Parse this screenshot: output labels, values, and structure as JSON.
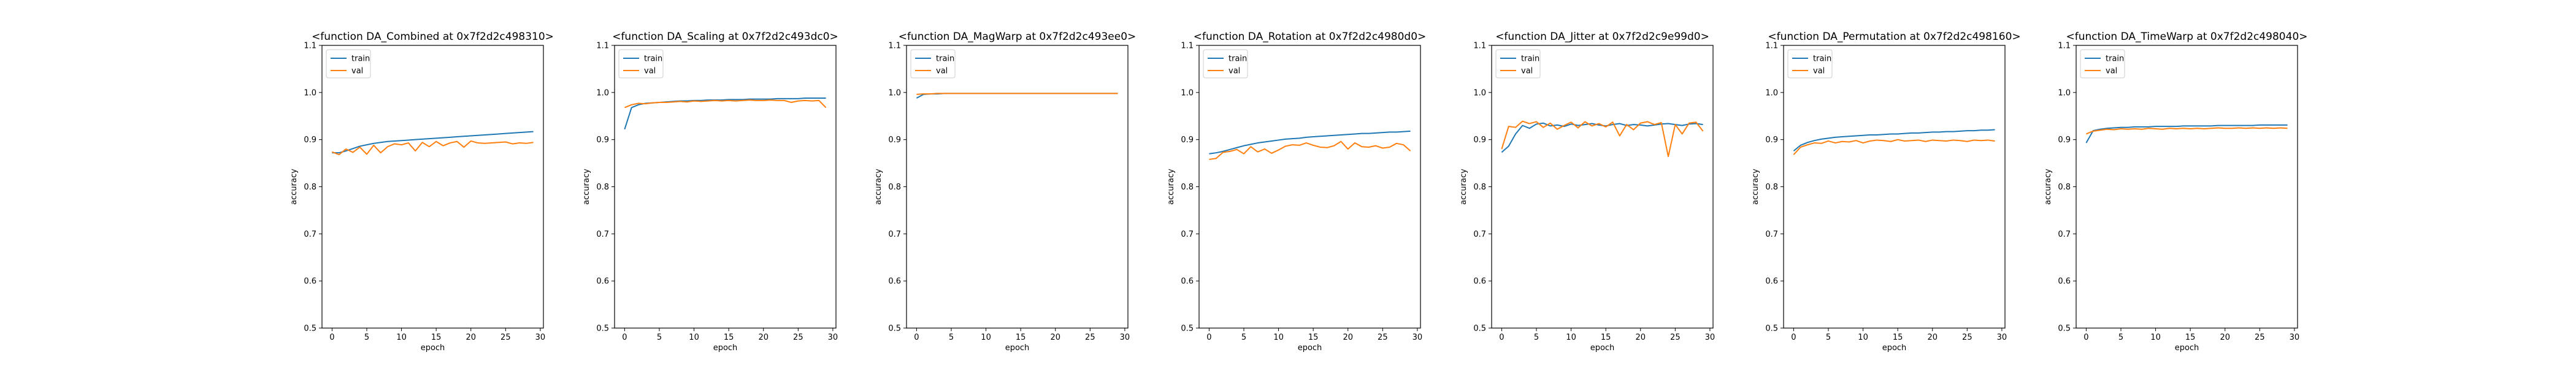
{
  "colors": {
    "train": "#1f77b4",
    "val": "#ff7f0e",
    "axes": "#000000",
    "legend_edge": "#cccccc"
  },
  "chart_data": [
    {
      "type": "line",
      "title": "<function DA_Combined at 0x7f2d2c498310>",
      "xlabel": "epoch",
      "ylabel": "accuracy",
      "xlim": [
        -1.45,
        30.45
      ],
      "ylim": [
        0.5,
        1.1
      ],
      "xticks": [
        0,
        5,
        10,
        15,
        20,
        25,
        30
      ],
      "yticks": [
        0.5,
        0.6,
        0.7,
        0.8,
        0.9,
        1.0,
        1.1
      ],
      "grid": false,
      "legend": "upper left",
      "series": [
        {
          "name": "train",
          "values": [
            0.872,
            0.872,
            0.876,
            0.881,
            0.886,
            0.889,
            0.892,
            0.894,
            0.896,
            0.897,
            0.898,
            0.899,
            0.9,
            0.901,
            0.902,
            0.903,
            0.904,
            0.905,
            0.906,
            0.907,
            0.908,
            0.909,
            0.91,
            0.911,
            0.912,
            0.913,
            0.914,
            0.915,
            0.916,
            0.917
          ]
        },
        {
          "name": "val",
          "values": [
            0.874,
            0.868,
            0.88,
            0.873,
            0.884,
            0.869,
            0.888,
            0.872,
            0.885,
            0.891,
            0.889,
            0.893,
            0.876,
            0.894,
            0.885,
            0.896,
            0.887,
            0.893,
            0.896,
            0.884,
            0.897,
            0.893,
            0.892,
            0.893,
            0.894,
            0.895,
            0.891,
            0.893,
            0.892,
            0.894
          ]
        }
      ]
    },
    {
      "type": "line",
      "title": "<function DA_Scaling at 0x7f2d2c493dc0>",
      "xlabel": "epoch",
      "ylabel": "accuracy",
      "xlim": [
        -1.45,
        30.45
      ],
      "ylim": [
        0.5,
        1.1
      ],
      "xticks": [
        0,
        5,
        10,
        15,
        20,
        25,
        30
      ],
      "yticks": [
        0.5,
        0.6,
        0.7,
        0.8,
        0.9,
        1.0,
        1.1
      ],
      "grid": false,
      "legend": "upper left",
      "series": [
        {
          "name": "train",
          "values": [
            0.922,
            0.968,
            0.974,
            0.977,
            0.978,
            0.979,
            0.98,
            0.981,
            0.982,
            0.982,
            0.983,
            0.983,
            0.984,
            0.984,
            0.984,
            0.985,
            0.985,
            0.985,
            0.986,
            0.986,
            0.986,
            0.986,
            0.987,
            0.987,
            0.987,
            0.987,
            0.988,
            0.988,
            0.988,
            0.988
          ]
        },
        {
          "name": "val",
          "values": [
            0.968,
            0.974,
            0.977,
            0.976,
            0.978,
            0.979,
            0.979,
            0.98,
            0.981,
            0.98,
            0.982,
            0.981,
            0.982,
            0.983,
            0.982,
            0.983,
            0.982,
            0.983,
            0.984,
            0.983,
            0.983,
            0.984,
            0.983,
            0.983,
            0.979,
            0.982,
            0.983,
            0.982,
            0.983,
            0.968
          ]
        }
      ]
    },
    {
      "type": "line",
      "title": "<function DA_MagWarp at 0x7f2d2c493ee0>",
      "xlabel": "epoch",
      "ylabel": "accuracy",
      "xlim": [
        -1.45,
        30.45
      ],
      "ylim": [
        0.5,
        1.1
      ],
      "xticks": [
        0,
        5,
        10,
        15,
        20,
        25,
        30
      ],
      "yticks": [
        0.5,
        0.6,
        0.7,
        0.8,
        0.9,
        1.0,
        1.1
      ],
      "grid": false,
      "legend": "upper left",
      "series": [
        {
          "name": "train",
          "values": [
            0.988,
            0.996,
            0.997,
            0.997,
            0.998,
            0.998,
            0.998,
            0.998,
            0.998,
            0.998,
            0.998,
            0.998,
            0.998,
            0.998,
            0.998,
            0.998,
            0.998,
            0.998,
            0.998,
            0.998,
            0.998,
            0.998,
            0.998,
            0.998,
            0.998,
            0.998,
            0.998,
            0.998,
            0.998,
            0.998
          ]
        },
        {
          "name": "val",
          "values": [
            0.996,
            0.997,
            0.997,
            0.998,
            0.998,
            0.998,
            0.998,
            0.998,
            0.998,
            0.998,
            0.998,
            0.998,
            0.998,
            0.998,
            0.998,
            0.998,
            0.998,
            0.998,
            0.998,
            0.998,
            0.998,
            0.998,
            0.998,
            0.998,
            0.998,
            0.998,
            0.998,
            0.998,
            0.998,
            0.998
          ]
        }
      ]
    },
    {
      "type": "line",
      "title": "<function DA_Rotation at 0x7f2d2c4980d0>",
      "xlabel": "epoch",
      "ylabel": "accuracy",
      "xlim": [
        -1.45,
        30.45
      ],
      "ylim": [
        0.5,
        1.1
      ],
      "xticks": [
        0,
        5,
        10,
        15,
        20,
        25,
        30
      ],
      "yticks": [
        0.5,
        0.6,
        0.7,
        0.8,
        0.9,
        1.0,
        1.1
      ],
      "grid": false,
      "legend": "upper left",
      "series": [
        {
          "name": "train",
          "values": [
            0.87,
            0.872,
            0.875,
            0.879,
            0.883,
            0.887,
            0.89,
            0.893,
            0.895,
            0.897,
            0.899,
            0.901,
            0.902,
            0.903,
            0.905,
            0.906,
            0.907,
            0.908,
            0.909,
            0.91,
            0.911,
            0.912,
            0.913,
            0.913,
            0.914,
            0.915,
            0.916,
            0.916,
            0.917,
            0.918
          ]
        },
        {
          "name": "val",
          "values": [
            0.858,
            0.86,
            0.873,
            0.875,
            0.879,
            0.87,
            0.885,
            0.874,
            0.88,
            0.871,
            0.878,
            0.886,
            0.889,
            0.888,
            0.893,
            0.888,
            0.884,
            0.883,
            0.887,
            0.896,
            0.88,
            0.893,
            0.885,
            0.884,
            0.887,
            0.882,
            0.884,
            0.892,
            0.889,
            0.876
          ]
        }
      ]
    },
    {
      "type": "line",
      "title": "<function DA_Jitter at 0x7f2d2c9e99d0>",
      "xlabel": "epoch",
      "ylabel": "accuracy",
      "xlim": [
        -1.45,
        30.45
      ],
      "ylim": [
        0.5,
        1.1
      ],
      "xticks": [
        0,
        5,
        10,
        15,
        20,
        25,
        30
      ],
      "yticks": [
        0.5,
        0.6,
        0.7,
        0.8,
        0.9,
        1.0,
        1.1
      ],
      "grid": false,
      "legend": "upper left",
      "series": [
        {
          "name": "train",
          "values": [
            0.873,
            0.886,
            0.912,
            0.93,
            0.924,
            0.933,
            0.935,
            0.929,
            0.931,
            0.928,
            0.933,
            0.93,
            0.932,
            0.934,
            0.931,
            0.929,
            0.932,
            0.934,
            0.93,
            0.932,
            0.931,
            0.929,
            0.931,
            0.933,
            0.934,
            0.932,
            0.93,
            0.933,
            0.934,
            0.932
          ]
        },
        {
          "name": "val",
          "values": [
            0.88,
            0.928,
            0.926,
            0.939,
            0.934,
            0.938,
            0.926,
            0.935,
            0.922,
            0.93,
            0.937,
            0.925,
            0.938,
            0.929,
            0.934,
            0.927,
            0.937,
            0.908,
            0.932,
            0.921,
            0.935,
            0.938,
            0.932,
            0.936,
            0.864,
            0.932,
            0.912,
            0.935,
            0.937,
            0.918
          ]
        }
      ]
    },
    {
      "type": "line",
      "title": "<function DA_Permutation at 0x7f2d2c498160>",
      "xlabel": "epoch",
      "ylabel": "accuracy",
      "xlim": [
        -1.45,
        30.45
      ],
      "ylim": [
        0.5,
        1.1
      ],
      "xticks": [
        0,
        5,
        10,
        15,
        20,
        25,
        30
      ],
      "yticks": [
        0.5,
        0.6,
        0.7,
        0.8,
        0.9,
        1.0,
        1.1
      ],
      "grid": false,
      "legend": "upper left",
      "series": [
        {
          "name": "train",
          "values": [
            0.876,
            0.888,
            0.894,
            0.898,
            0.901,
            0.903,
            0.905,
            0.906,
            0.907,
            0.908,
            0.909,
            0.91,
            0.91,
            0.911,
            0.912,
            0.912,
            0.913,
            0.914,
            0.914,
            0.915,
            0.916,
            0.916,
            0.917,
            0.917,
            0.918,
            0.919,
            0.919,
            0.92,
            0.92,
            0.921
          ]
        },
        {
          "name": "val",
          "values": [
            0.868,
            0.884,
            0.889,
            0.893,
            0.892,
            0.897,
            0.893,
            0.896,
            0.895,
            0.898,
            0.893,
            0.897,
            0.899,
            0.898,
            0.896,
            0.9,
            0.897,
            0.898,
            0.899,
            0.896,
            0.899,
            0.898,
            0.897,
            0.899,
            0.898,
            0.896,
            0.899,
            0.898,
            0.899,
            0.897
          ]
        }
      ]
    },
    {
      "type": "line",
      "title": "<function DA_TimeWarp at 0x7f2d2c498040>",
      "xlabel": "epoch",
      "ylabel": "accuracy",
      "xlim": [
        -1.45,
        30.45
      ],
      "ylim": [
        0.5,
        1.1
      ],
      "xticks": [
        0,
        5,
        10,
        15,
        20,
        25,
        30
      ],
      "yticks": [
        0.5,
        0.6,
        0.7,
        0.8,
        0.9,
        1.0,
        1.1
      ],
      "grid": false,
      "legend": "upper left",
      "series": [
        {
          "name": "train",
          "values": [
            0.893,
            0.919,
            0.922,
            0.924,
            0.925,
            0.926,
            0.926,
            0.927,
            0.927,
            0.927,
            0.928,
            0.928,
            0.928,
            0.928,
            0.929,
            0.929,
            0.929,
            0.929,
            0.929,
            0.93,
            0.93,
            0.93,
            0.93,
            0.93,
            0.93,
            0.931,
            0.931,
            0.931,
            0.931,
            0.931
          ]
        },
        {
          "name": "val",
          "values": [
            0.912,
            0.918,
            0.92,
            0.922,
            0.921,
            0.923,
            0.922,
            0.923,
            0.922,
            0.924,
            0.923,
            0.922,
            0.924,
            0.923,
            0.924,
            0.923,
            0.924,
            0.923,
            0.924,
            0.925,
            0.924,
            0.924,
            0.925,
            0.924,
            0.925,
            0.924,
            0.925,
            0.924,
            0.925,
            0.924
          ]
        }
      ]
    }
  ]
}
